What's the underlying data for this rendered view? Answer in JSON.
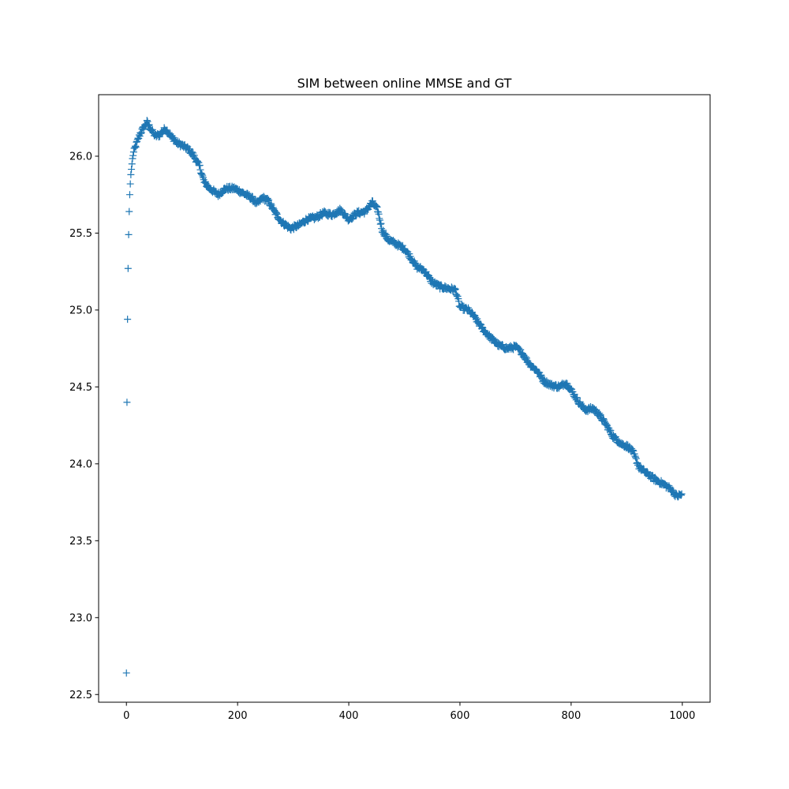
{
  "chart_data": {
    "type": "scatter",
    "title": "SIM between online MMSE and GT",
    "xlabel": "",
    "ylabel": "",
    "marker": "+",
    "series_color": "#1f77b4",
    "xlim": [
      -50,
      1050
    ],
    "ylim": [
      22.45,
      26.4
    ],
    "x_ticks": [
      0,
      200,
      400,
      600,
      800,
      1000
    ],
    "y_ticks": [
      22.5,
      23.0,
      23.5,
      24.0,
      24.5,
      25.0,
      25.5,
      26.0
    ],
    "grid": false,
    "legend": "none",
    "control_points": [
      [
        0,
        22.64
      ],
      [
        1,
        24.4
      ],
      [
        2,
        24.94
      ],
      [
        3,
        25.27
      ],
      [
        4,
        25.49
      ],
      [
        5,
        25.64
      ],
      [
        6,
        25.75
      ],
      [
        7,
        25.82
      ],
      [
        8,
        25.88
      ],
      [
        10,
        25.95
      ],
      [
        12,
        26.01
      ],
      [
        15,
        26.05
      ],
      [
        20,
        26.1
      ],
      [
        25,
        26.15
      ],
      [
        30,
        26.18
      ],
      [
        37,
        26.22
      ],
      [
        45,
        26.17
      ],
      [
        52,
        26.13
      ],
      [
        60,
        26.14
      ],
      [
        70,
        26.18
      ],
      [
        78,
        26.14
      ],
      [
        90,
        26.09
      ],
      [
        100,
        26.07
      ],
      [
        110,
        26.05
      ],
      [
        120,
        26.01
      ],
      [
        132,
        25.93
      ],
      [
        140,
        25.83
      ],
      [
        150,
        25.79
      ],
      [
        165,
        25.75
      ],
      [
        178,
        25.79
      ],
      [
        195,
        25.79
      ],
      [
        210,
        25.76
      ],
      [
        225,
        25.73
      ],
      [
        235,
        25.69
      ],
      [
        245,
        25.73
      ],
      [
        255,
        25.71
      ],
      [
        268,
        25.63
      ],
      [
        280,
        25.57
      ],
      [
        295,
        25.53
      ],
      [
        310,
        25.55
      ],
      [
        325,
        25.59
      ],
      [
        340,
        25.6
      ],
      [
        355,
        25.63
      ],
      [
        370,
        25.62
      ],
      [
        385,
        25.65
      ],
      [
        400,
        25.59
      ],
      [
        415,
        25.63
      ],
      [
        430,
        25.64
      ],
      [
        442,
        25.7
      ],
      [
        452,
        25.65
      ],
      [
        460,
        25.52
      ],
      [
        470,
        25.46
      ],
      [
        485,
        25.43
      ],
      [
        500,
        25.4
      ],
      [
        512,
        25.34
      ],
      [
        522,
        25.28
      ],
      [
        535,
        25.26
      ],
      [
        550,
        25.18
      ],
      [
        565,
        25.15
      ],
      [
        580,
        25.14
      ],
      [
        592,
        25.13
      ],
      [
        600,
        25.02
      ],
      [
        615,
        25.0
      ],
      [
        625,
        24.96
      ],
      [
        640,
        24.88
      ],
      [
        655,
        24.82
      ],
      [
        670,
        24.77
      ],
      [
        685,
        24.75
      ],
      [
        700,
        24.76
      ],
      [
        712,
        24.72
      ],
      [
        725,
        24.65
      ],
      [
        740,
        24.6
      ],
      [
        750,
        24.54
      ],
      [
        765,
        24.51
      ],
      [
        780,
        24.5
      ],
      [
        790,
        24.53
      ],
      [
        800,
        24.48
      ],
      [
        812,
        24.41
      ],
      [
        825,
        24.35
      ],
      [
        840,
        24.36
      ],
      [
        850,
        24.32
      ],
      [
        862,
        24.26
      ],
      [
        875,
        24.18
      ],
      [
        890,
        24.13
      ],
      [
        903,
        24.11
      ],
      [
        912,
        24.07
      ],
      [
        922,
        23.98
      ],
      [
        935,
        23.94
      ],
      [
        950,
        23.9
      ],
      [
        965,
        23.87
      ],
      [
        978,
        23.84
      ],
      [
        990,
        23.79
      ],
      [
        999,
        23.8
      ]
    ],
    "num_points": 1000
  }
}
